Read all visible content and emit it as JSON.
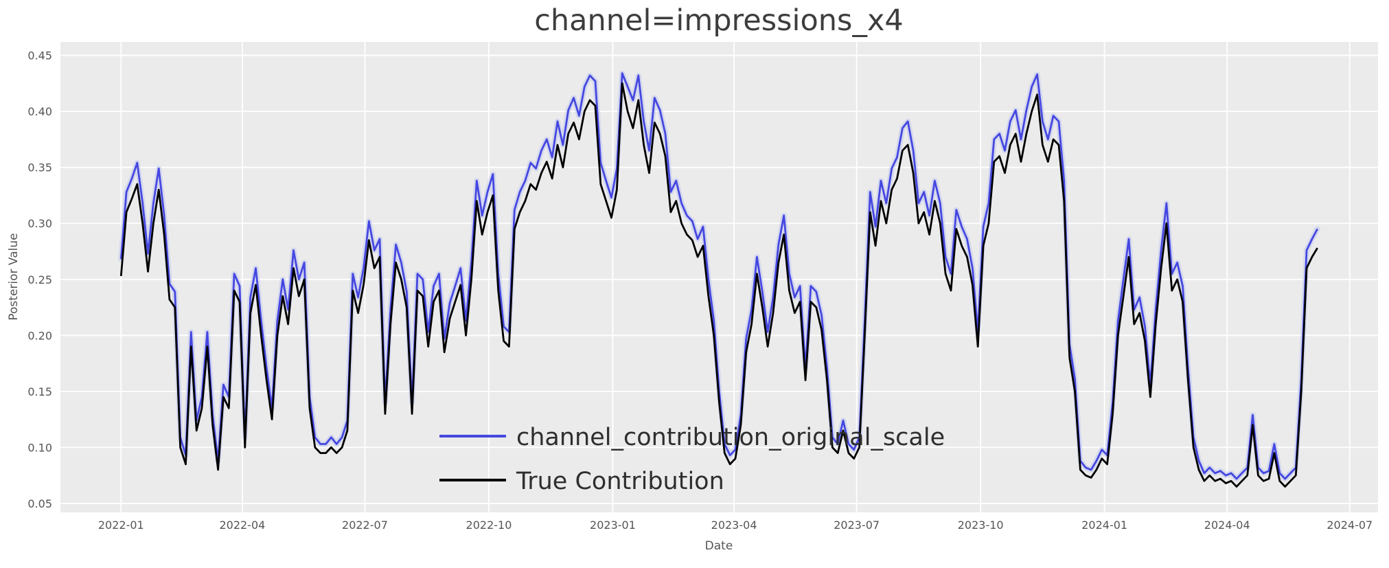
{
  "figure": {
    "background": "#ffffff",
    "plot_background": "#ebebeb",
    "grid_color": "#ffffff",
    "text_color": "#555555"
  },
  "chart_data": {
    "type": "line",
    "title": "channel=impressions_x4",
    "xlabel": "Date",
    "ylabel": "Posterior Value",
    "ylim": [
      0.042,
      0.462
    ],
    "yticks": [
      0.05,
      0.1,
      0.15,
      0.2,
      0.25,
      0.3,
      0.35,
      0.4,
      0.45
    ],
    "x_ticks": [
      "2022-01",
      "2022-04",
      "2022-07",
      "2022-10",
      "2023-01",
      "2023-04",
      "2023-07",
      "2023-10",
      "2024-01",
      "2024-04",
      "2024-07"
    ],
    "x_axis_range": [
      "2021-11-17",
      "2024-07-22"
    ],
    "x_start": "2022-01-01",
    "x_step_days": 4,
    "grid": true,
    "legend_position": "lower center inside",
    "series": [
      {
        "name": "channel_contribution_original_scale",
        "color": "#4547e0",
        "band_color": "#bcc3f0",
        "values": [
          0.268,
          0.328,
          0.34,
          0.354,
          0.318,
          0.273,
          0.318,
          0.349,
          0.307,
          0.246,
          0.239,
          0.109,
          0.093,
          0.203,
          0.124,
          0.145,
          0.203,
          0.129,
          0.088,
          0.156,
          0.145,
          0.255,
          0.244,
          0.109,
          0.234,
          0.26,
          0.213,
          0.171,
          0.135,
          0.213,
          0.25,
          0.223,
          0.276,
          0.25,
          0.265,
          0.145,
          0.109,
          0.103,
          0.103,
          0.109,
          0.103,
          0.109,
          0.124,
          0.255,
          0.234,
          0.26,
          0.302,
          0.276,
          0.286,
          0.14,
          0.223,
          0.281,
          0.265,
          0.239,
          0.14,
          0.255,
          0.25,
          0.203,
          0.244,
          0.255,
          0.197,
          0.229,
          0.244,
          0.26,
          0.213,
          0.265,
          0.338,
          0.307,
          0.328,
          0.344,
          0.255,
          0.208,
          0.203,
          0.312,
          0.328,
          0.338,
          0.354,
          0.349,
          0.365,
          0.375,
          0.359,
          0.391,
          0.37,
          0.401,
          0.412,
          0.396,
          0.422,
          0.432,
          0.427,
          0.354,
          0.338,
          0.323,
          0.349,
          0.434,
          0.422,
          0.41,
          0.432,
          0.391,
          0.365,
          0.412,
          0.401,
          0.38,
          0.328,
          0.338,
          0.318,
          0.307,
          0.302,
          0.286,
          0.297,
          0.25,
          0.213,
          0.15,
          0.103,
          0.093,
          0.098,
          0.129,
          0.197,
          0.223,
          0.27,
          0.239,
          0.203,
          0.234,
          0.281,
          0.307,
          0.255,
          0.234,
          0.244,
          0.171,
          0.244,
          0.239,
          0.218,
          0.171,
          0.109,
          0.103,
          0.124,
          0.103,
          0.098,
          0.109,
          0.213,
          0.328,
          0.297,
          0.338,
          0.318,
          0.349,
          0.359,
          0.385,
          0.391,
          0.365,
          0.318,
          0.328,
          0.307,
          0.338,
          0.318,
          0.27,
          0.255,
          0.312,
          0.297,
          0.286,
          0.26,
          0.203,
          0.297,
          0.318,
          0.375,
          0.38,
          0.365,
          0.391,
          0.401,
          0.375,
          0.401,
          0.422,
          0.433,
          0.391,
          0.375,
          0.396,
          0.391,
          0.338,
          0.192,
          0.161,
          0.088,
          0.082,
          0.08,
          0.088,
          0.098,
          0.093,
          0.14,
          0.213,
          0.25,
          0.286,
          0.223,
          0.234,
          0.208,
          0.156,
          0.223,
          0.276,
          0.318,
          0.255,
          0.265,
          0.244,
          0.171,
          0.109,
          0.088,
          0.077,
          0.082,
          0.077,
          0.079,
          0.075,
          0.077,
          0.072,
          0.077,
          0.082,
          0.129,
          0.082,
          0.077,
          0.079,
          0.103,
          0.077,
          0.072,
          0.077,
          0.082,
          0.161,
          0.276,
          0.286,
          0.295
        ]
      },
      {
        "name": "True Contribution",
        "color": "#000000",
        "values": [
          0.253,
          0.31,
          0.322,
          0.335,
          0.3,
          0.257,
          0.3,
          0.33,
          0.29,
          0.232,
          0.225,
          0.1,
          0.085,
          0.19,
          0.115,
          0.135,
          0.19,
          0.12,
          0.08,
          0.145,
          0.135,
          0.24,
          0.23,
          0.1,
          0.22,
          0.245,
          0.2,
          0.16,
          0.125,
          0.2,
          0.235,
          0.21,
          0.26,
          0.235,
          0.25,
          0.135,
          0.1,
          0.095,
          0.095,
          0.1,
          0.095,
          0.1,
          0.115,
          0.24,
          0.22,
          0.245,
          0.285,
          0.26,
          0.27,
          0.13,
          0.21,
          0.265,
          0.25,
          0.225,
          0.13,
          0.24,
          0.235,
          0.19,
          0.23,
          0.24,
          0.185,
          0.215,
          0.23,
          0.245,
          0.2,
          0.25,
          0.32,
          0.29,
          0.31,
          0.325,
          0.24,
          0.195,
          0.19,
          0.295,
          0.31,
          0.32,
          0.335,
          0.33,
          0.345,
          0.355,
          0.34,
          0.37,
          0.35,
          0.38,
          0.39,
          0.375,
          0.4,
          0.41,
          0.405,
          0.335,
          0.32,
          0.305,
          0.33,
          0.425,
          0.4,
          0.385,
          0.41,
          0.37,
          0.345,
          0.39,
          0.38,
          0.36,
          0.31,
          0.32,
          0.3,
          0.29,
          0.285,
          0.27,
          0.28,
          0.235,
          0.2,
          0.14,
          0.095,
          0.085,
          0.09,
          0.12,
          0.185,
          0.21,
          0.255,
          0.225,
          0.19,
          0.22,
          0.265,
          0.29,
          0.24,
          0.22,
          0.23,
          0.16,
          0.23,
          0.225,
          0.205,
          0.16,
          0.1,
          0.095,
          0.115,
          0.095,
          0.09,
          0.1,
          0.2,
          0.31,
          0.28,
          0.32,
          0.3,
          0.33,
          0.34,
          0.365,
          0.37,
          0.345,
          0.3,
          0.31,
          0.29,
          0.32,
          0.3,
          0.255,
          0.24,
          0.295,
          0.28,
          0.27,
          0.245,
          0.19,
          0.28,
          0.3,
          0.355,
          0.36,
          0.345,
          0.37,
          0.38,
          0.355,
          0.38,
          0.4,
          0.415,
          0.37,
          0.355,
          0.375,
          0.37,
          0.32,
          0.18,
          0.15,
          0.08,
          0.075,
          0.073,
          0.08,
          0.09,
          0.085,
          0.13,
          0.2,
          0.235,
          0.27,
          0.21,
          0.22,
          0.195,
          0.145,
          0.21,
          0.26,
          0.3,
          0.24,
          0.25,
          0.23,
          0.16,
          0.1,
          0.08,
          0.07,
          0.075,
          0.07,
          0.072,
          0.068,
          0.07,
          0.065,
          0.07,
          0.075,
          0.12,
          0.075,
          0.07,
          0.072,
          0.095,
          0.07,
          0.065,
          0.07,
          0.075,
          0.15,
          0.26,
          0.27,
          0.278
        ]
      }
    ]
  }
}
